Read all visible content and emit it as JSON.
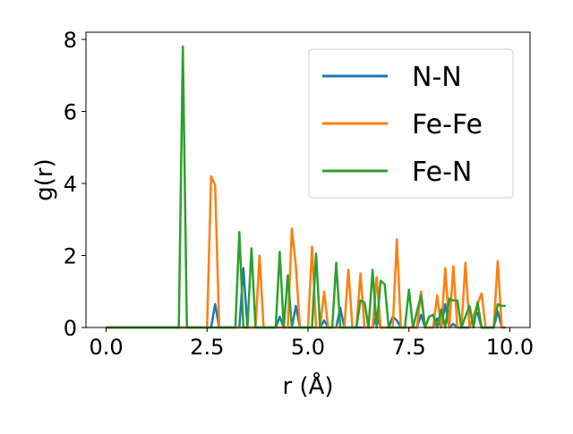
{
  "chart_data": {
    "type": "line",
    "xlabel": "r (Å)",
    "ylabel": "g(r)",
    "xlim": [
      -0.5,
      10.5
    ],
    "ylim": [
      0,
      8.2
    ],
    "xticks": [
      0.0,
      2.5,
      5.0,
      7.5,
      10.0
    ],
    "xtick_labels": [
      "0.0",
      "2.5",
      "5.0",
      "7.5",
      "10.0"
    ],
    "yticks": [
      0,
      2,
      4,
      6,
      8
    ],
    "ytick_labels": [
      "0",
      "2",
      "4",
      "6",
      "8"
    ],
    "grid": false,
    "legend_position": "upper-right",
    "series": [
      {
        "name": "N-N",
        "color": "#1f77b4",
        "points": [
          [
            0.0,
            0
          ],
          [
            2.6,
            0
          ],
          [
            2.7,
            0.65
          ],
          [
            2.8,
            0
          ],
          [
            3.3,
            0
          ],
          [
            3.4,
            1.65
          ],
          [
            3.5,
            0
          ],
          [
            4.2,
            0
          ],
          [
            4.3,
            0.3
          ],
          [
            4.4,
            0
          ],
          [
            4.6,
            0
          ],
          [
            4.7,
            0.6
          ],
          [
            4.8,
            0
          ],
          [
            5.3,
            0
          ],
          [
            5.4,
            0.2
          ],
          [
            5.5,
            0
          ],
          [
            5.7,
            0
          ],
          [
            5.8,
            0.55
          ],
          [
            5.9,
            0
          ],
          [
            6.6,
            0
          ],
          [
            6.7,
            0.35
          ],
          [
            6.8,
            0
          ],
          [
            7.0,
            0
          ],
          [
            7.1,
            0.3
          ],
          [
            7.2,
            0.2
          ],
          [
            7.3,
            0
          ],
          [
            7.7,
            0
          ],
          [
            7.8,
            0.35
          ],
          [
            7.9,
            0
          ],
          [
            8.1,
            0
          ],
          [
            8.2,
            0.25
          ],
          [
            8.3,
            0
          ],
          [
            8.4,
            0.65
          ],
          [
            8.5,
            0
          ],
          [
            8.6,
            0.1
          ],
          [
            8.7,
            0
          ],
          [
            9.0,
            0
          ],
          [
            9.1,
            0.3
          ],
          [
            9.2,
            0.4
          ],
          [
            9.3,
            0
          ],
          [
            9.6,
            0
          ],
          [
            9.7,
            0.45
          ],
          [
            9.8,
            0
          ],
          [
            9.9,
            0
          ]
        ]
      },
      {
        "name": "Fe-Fe",
        "color": "#ff7f0e",
        "points": [
          [
            0.0,
            0
          ],
          [
            2.5,
            0
          ],
          [
            2.6,
            4.2
          ],
          [
            2.7,
            3.95
          ],
          [
            2.8,
            0
          ],
          [
            3.7,
            0
          ],
          [
            3.8,
            2.0
          ],
          [
            3.9,
            0
          ],
          [
            4.5,
            0
          ],
          [
            4.6,
            2.75
          ],
          [
            4.7,
            1.7
          ],
          [
            4.8,
            0
          ],
          [
            5.0,
            0
          ],
          [
            5.1,
            2.25
          ],
          [
            5.2,
            0
          ],
          [
            5.3,
            0
          ],
          [
            5.4,
            1.0
          ],
          [
            5.5,
            0
          ],
          [
            5.9,
            0
          ],
          [
            6.0,
            1.6
          ],
          [
            6.1,
            0
          ],
          [
            6.2,
            0
          ],
          [
            6.3,
            1.5
          ],
          [
            6.4,
            0
          ],
          [
            6.6,
            0
          ],
          [
            6.7,
            1.4
          ],
          [
            6.8,
            0
          ],
          [
            7.1,
            0
          ],
          [
            7.2,
            2.45
          ],
          [
            7.3,
            0
          ],
          [
            7.7,
            0
          ],
          [
            7.8,
            1.0
          ],
          [
            7.9,
            0
          ],
          [
            8.1,
            0
          ],
          [
            8.2,
            0.9
          ],
          [
            8.3,
            0
          ],
          [
            8.4,
            1.65
          ],
          [
            8.5,
            0
          ],
          [
            8.6,
            1.7
          ],
          [
            8.7,
            0
          ],
          [
            8.8,
            0
          ],
          [
            8.9,
            1.8
          ],
          [
            9.0,
            0
          ],
          [
            9.2,
            0.65
          ],
          [
            9.3,
            0.95
          ],
          [
            9.4,
            0
          ],
          [
            9.6,
            0
          ],
          [
            9.7,
            1.85
          ],
          [
            9.8,
            0
          ],
          [
            9.9,
            0
          ]
        ]
      },
      {
        "name": "Fe-N",
        "color": "#2ca02c",
        "points": [
          [
            0.0,
            0
          ],
          [
            1.8,
            0
          ],
          [
            1.9,
            7.8
          ],
          [
            2.0,
            0
          ],
          [
            3.2,
            0
          ],
          [
            3.3,
            2.65
          ],
          [
            3.4,
            0
          ],
          [
            3.5,
            0
          ],
          [
            3.6,
            2.2
          ],
          [
            3.7,
            0
          ],
          [
            4.2,
            0
          ],
          [
            4.3,
            2.1
          ],
          [
            4.4,
            0
          ],
          [
            4.5,
            1.45
          ],
          [
            4.6,
            0
          ],
          [
            5.1,
            0
          ],
          [
            5.2,
            2.05
          ],
          [
            5.3,
            0
          ],
          [
            5.6,
            0
          ],
          [
            5.7,
            1.8
          ],
          [
            5.8,
            0
          ],
          [
            6.2,
            0
          ],
          [
            6.3,
            0.75
          ],
          [
            6.4,
            0.7
          ],
          [
            6.5,
            0
          ],
          [
            6.6,
            1.6
          ],
          [
            6.7,
            0
          ],
          [
            6.8,
            1.3
          ],
          [
            6.9,
            1.2
          ],
          [
            7.0,
            0
          ],
          [
            7.4,
            0
          ],
          [
            7.5,
            1.05
          ],
          [
            7.6,
            0
          ],
          [
            7.8,
            0.9
          ],
          [
            7.9,
            0
          ],
          [
            8.0,
            0.3
          ],
          [
            8.1,
            0.35
          ],
          [
            8.2,
            0
          ],
          [
            8.3,
            0.5
          ],
          [
            8.4,
            0
          ],
          [
            8.5,
            0.8
          ],
          [
            8.6,
            0.75
          ],
          [
            8.7,
            0.75
          ],
          [
            8.8,
            0
          ],
          [
            8.9,
            0.3
          ],
          [
            9.0,
            0.6
          ],
          [
            9.1,
            0
          ],
          [
            9.2,
            0.7
          ],
          [
            9.3,
            0
          ],
          [
            9.6,
            0
          ],
          [
            9.7,
            0.65
          ],
          [
            9.8,
            0.6
          ],
          [
            9.9,
            0.6
          ]
        ]
      }
    ]
  }
}
